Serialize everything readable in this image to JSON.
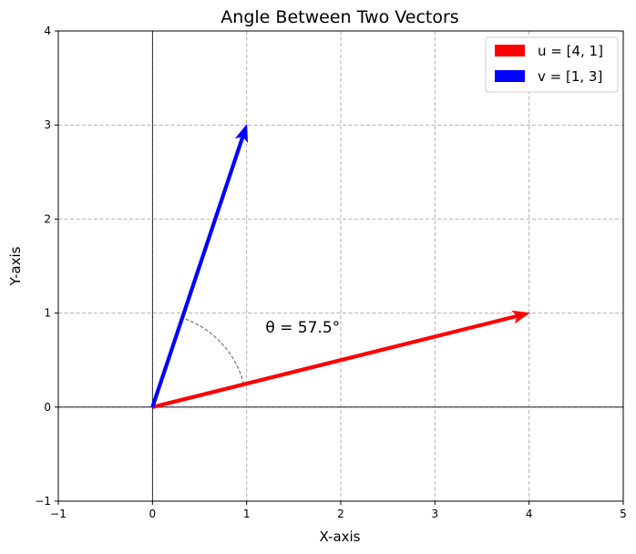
{
  "chart_data": {
    "type": "vector",
    "title": "Angle Between Two Vectors",
    "xlabel": "X-axis",
    "ylabel": "Y-axis",
    "xlim": [
      -1,
      5
    ],
    "ylim": [
      -1,
      4
    ],
    "xticks": [
      -1,
      0,
      1,
      2,
      3,
      4,
      5
    ],
    "yticks": [
      -1,
      0,
      1,
      2,
      3,
      4
    ],
    "xtick_labels": [
      "−1",
      "0",
      "1",
      "2",
      "3",
      "4",
      "5"
    ],
    "ytick_labels": [
      "−1",
      "0",
      "1",
      "2",
      "3",
      "4"
    ],
    "grid": true,
    "legend_position": "top-right",
    "vectors": [
      {
        "name": "u = [4, 1]",
        "origin": [
          0,
          0
        ],
        "components": [
          4,
          1
        ],
        "color": "#ff0000"
      },
      {
        "name": "v = [1, 3]",
        "origin": [
          0,
          0
        ],
        "components": [
          1,
          3
        ],
        "color": "#0000ff"
      }
    ],
    "angle": {
      "label": "θ = 57.5°",
      "label_position": [
        1.2,
        0.85
      ],
      "arc_radius": 1.0,
      "color": "#777777"
    }
  }
}
